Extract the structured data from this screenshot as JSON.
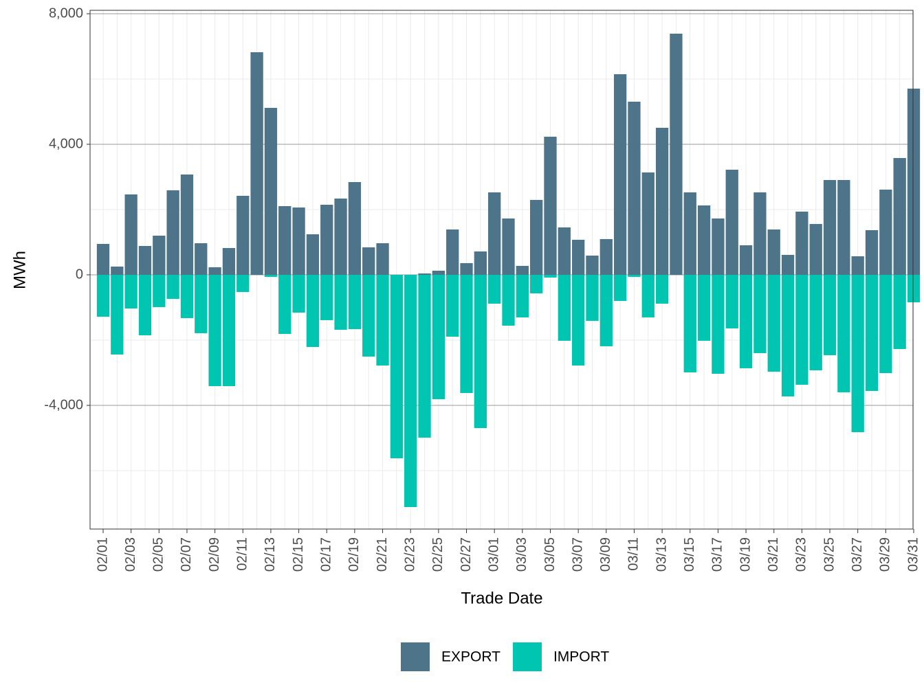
{
  "chart_data": {
    "type": "bar",
    "x_label": "Trade Date",
    "y_label": "MWh",
    "categories": [
      "02/01",
      null,
      "02/03",
      null,
      "02/05",
      null,
      "02/07",
      null,
      "02/09",
      null,
      "02/11",
      null,
      "02/13",
      null,
      "02/15",
      null,
      "02/17",
      null,
      "02/19",
      null,
      "02/21",
      null,
      "02/23",
      null,
      "02/25",
      null,
      "02/27",
      null,
      "03/01",
      null,
      "03/03",
      null,
      "03/05",
      null,
      "03/07",
      null,
      "03/09",
      null,
      "03/11",
      null,
      "03/13",
      null,
      "03/15",
      null,
      "03/17",
      null,
      "03/19",
      null,
      "03/21",
      null,
      "03/23",
      null,
      "03/25",
      null,
      "03/27",
      null,
      "03/29",
      null,
      "03/31"
    ],
    "series": [
      {
        "name": "EXPORT",
        "color": "#4e7489",
        "values": [
          947,
          253,
          2463,
          884,
          1200,
          2590,
          3074,
          968,
          232,
          821,
          2421,
          6821,
          5116,
          2105,
          2063,
          1242,
          2147,
          2337,
          2842,
          842,
          968,
          0,
          0,
          42,
          126,
          1389,
          358,
          716,
          2526,
          1726,
          274,
          2295,
          4232,
          1453,
          1074,
          589,
          1095,
          6147,
          5305,
          3137,
          4505,
          7389,
          2526,
          2126,
          1726,
          3221,
          905,
          2526,
          1389,
          611,
          1937,
          1558,
          2905,
          2905,
          568,
          1368,
          2611,
          3579,
          5705
        ]
      },
      {
        "name": "IMPORT",
        "color": "#00c5b0",
        "values": [
          -1284,
          -2442,
          -1032,
          -1853,
          -989,
          -737,
          -1326,
          -1789,
          -3411,
          -3411,
          -526,
          0,
          -63,
          -1811,
          -1158,
          -2211,
          -1389,
          -1684,
          -1663,
          -2505,
          -2779,
          -5621,
          -7116,
          -4989,
          -3811,
          -1895,
          -3621,
          -4695,
          -884,
          -1558,
          -1305,
          -568,
          -84,
          -2021,
          -2779,
          -1411,
          -2189,
          -800,
          -63,
          -1305,
          -884,
          0,
          -2989,
          -2021,
          -3032,
          -1642,
          -2863,
          -2400,
          -2968,
          -3726,
          -3368,
          -2926,
          -2463,
          -3600,
          -4821,
          -3558,
          -3011,
          -2274,
          -842
        ]
      }
    ],
    "ylim": [
      -7790,
      8105
    ],
    "yticks": [
      {
        "value": -4000,
        "label": "-4,000"
      },
      0,
      {
        "value": 4000,
        "label": "4,000"
      },
      {
        "value": 8000,
        "label": "8,000"
      }
    ],
    "grid": true,
    "legend": "bottom"
  }
}
